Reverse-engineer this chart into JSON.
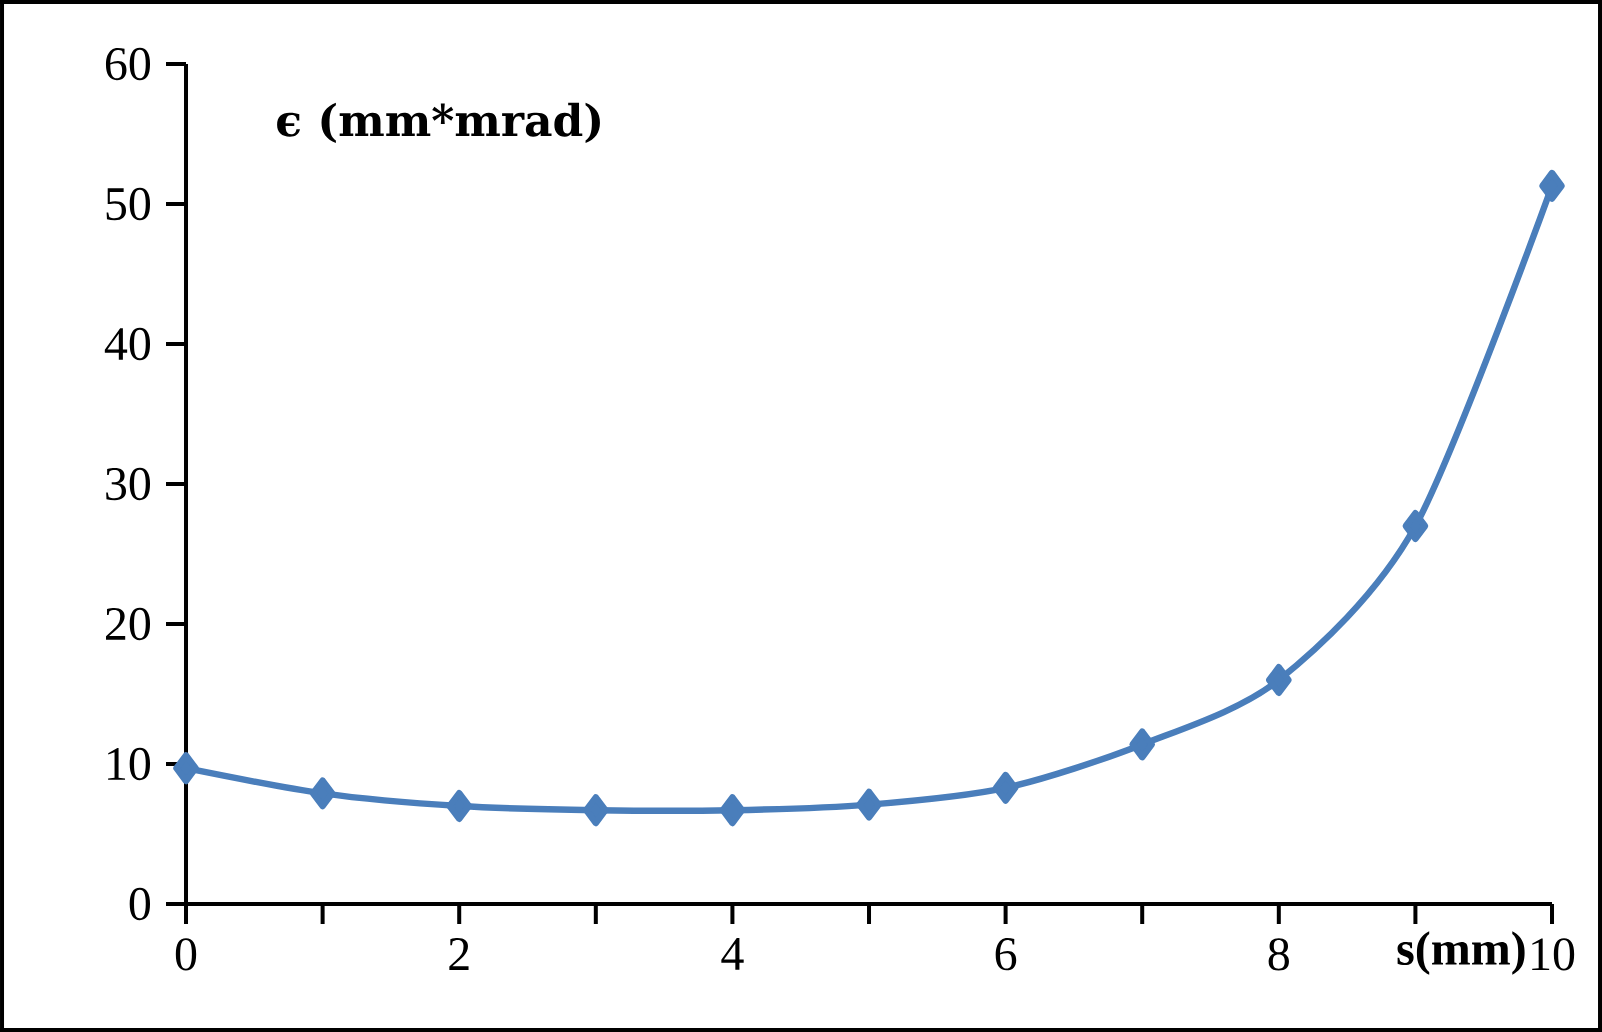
{
  "chart_data": {
    "type": "line",
    "xlabel": "s(mm)",
    "ylabel": "ϵ (mm*mrad)",
    "x": [
      0,
      1,
      2,
      3,
      4,
      5,
      6,
      7,
      8,
      9,
      10
    ],
    "series": [
      {
        "color": "#4a7ebb",
        "values": [
          9.7,
          7.9,
          7.0,
          6.7,
          6.7,
          7.1,
          8.3,
          11.4,
          16.0,
          27.0,
          51.3
        ]
      }
    ],
    "xlim": [
      0,
      10
    ],
    "ylim": [
      0,
      60
    ],
    "xticks": [
      0,
      {
        "value": 1,
        "label": null
      },
      2,
      {
        "value": 3,
        "label": null
      },
      4,
      {
        "value": 5,
        "label": null
      },
      6,
      {
        "value": 7,
        "label": null
      },
      8,
      {
        "value": 9,
        "label": null
      },
      10
    ],
    "yticks": [
      0,
      10,
      20,
      30,
      40,
      50,
      60
    ],
    "marker": "diamond",
    "line_style": "solid"
  }
}
